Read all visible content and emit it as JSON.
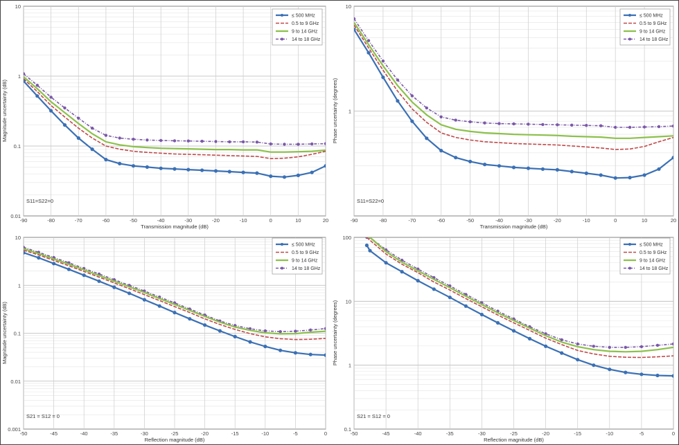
{
  "colors": {
    "series": [
      "#3a70b5",
      "#c04848",
      "#8cc04a",
      "#7a58a8"
    ],
    "grid": "#cccccc",
    "axis": "#666666"
  },
  "chart_data": [
    {
      "type": "line",
      "title": "",
      "xlabel": "Transmission magnitude (dB)",
      "ylabel": "Magnitude uncertainty (dB)",
      "yscale": "log",
      "xlim": [
        -90,
        20
      ],
      "ylim": [
        0.01,
        10
      ],
      "xticks": [
        "-90",
        "-80",
        "-70",
        "-60",
        "-50",
        "-40",
        "-30",
        "-20",
        "-10",
        "0",
        "10",
        "20"
      ],
      "yticks": [
        "0.01",
        "0.1",
        "1",
        "10"
      ],
      "note": "S11=S22=0",
      "legend": "top-right",
      "grid": true,
      "x": [
        -90,
        -85,
        -80,
        -75,
        -70,
        -65,
        -60,
        -55,
        -50,
        -45,
        -40,
        -35,
        -30,
        -25,
        -20,
        -15,
        -10,
        -5,
        0,
        5,
        10,
        15,
        20
      ],
      "series": [
        {
          "name": "≤ 500 MHz",
          "values": [
            0.85,
            0.52,
            0.32,
            0.2,
            0.13,
            0.09,
            0.064,
            0.056,
            0.052,
            0.05,
            0.048,
            0.047,
            0.046,
            0.045,
            0.044,
            0.043,
            0.042,
            0.041,
            0.037,
            0.036,
            0.038,
            0.042,
            0.052
          ]
        },
        {
          "name": "0.5 to 9 GHz",
          "values": [
            0.92,
            0.6,
            0.38,
            0.26,
            0.18,
            0.13,
            0.1,
            0.09,
            0.084,
            0.081,
            0.079,
            0.077,
            0.076,
            0.075,
            0.074,
            0.073,
            0.072,
            0.071,
            0.066,
            0.067,
            0.07,
            0.076,
            0.084
          ]
        },
        {
          "name": "9 to 14 GHz",
          "values": [
            0.98,
            0.66,
            0.43,
            0.3,
            0.21,
            0.15,
            0.115,
            0.104,
            0.098,
            0.095,
            0.093,
            0.092,
            0.091,
            0.09,
            0.089,
            0.089,
            0.088,
            0.088,
            0.082,
            0.082,
            0.083,
            0.084,
            0.087
          ]
        },
        {
          "name": "14 to 18 GHz",
          "values": [
            1.08,
            0.74,
            0.5,
            0.35,
            0.25,
            0.18,
            0.142,
            0.13,
            0.125,
            0.122,
            0.12,
            0.119,
            0.118,
            0.117,
            0.116,
            0.115,
            0.115,
            0.114,
            0.107,
            0.106,
            0.106,
            0.107,
            0.108
          ]
        }
      ]
    },
    {
      "type": "line",
      "title": "",
      "xlabel": "Transmission magnitude (dB)",
      "ylabel": "Phase uncertainty (degrees)",
      "yscale": "log",
      "xlim": [
        -90,
        20
      ],
      "ylim": [
        0.1,
        10
      ],
      "xticks": [
        "-90",
        "-80",
        "-70",
        "-60",
        "-50",
        "-40",
        "-30",
        "-20",
        "-10",
        "0",
        "10",
        "20"
      ],
      "yticks": [
        "",
        "1",
        "10"
      ],
      "note": "S11=S22=0",
      "legend": "top-right",
      "grid": true,
      "x": [
        -90,
        -85,
        -80,
        -75,
        -70,
        -65,
        -60,
        -55,
        -50,
        -45,
        -40,
        -35,
        -30,
        -25,
        -20,
        -15,
        -10,
        -5,
        0,
        5,
        10,
        15,
        20
      ],
      "series": [
        {
          "name": "≤ 500 MHz",
          "values": [
            6.0,
            3.6,
            2.1,
            1.25,
            0.8,
            0.55,
            0.42,
            0.36,
            0.33,
            0.31,
            0.3,
            0.29,
            0.285,
            0.28,
            0.275,
            0.265,
            0.255,
            0.245,
            0.23,
            0.232,
            0.245,
            0.28,
            0.36
          ]
        },
        {
          "name": "0.5 to 9 GHz",
          "values": [
            6.6,
            4.0,
            2.45,
            1.55,
            1.05,
            0.78,
            0.62,
            0.56,
            0.53,
            0.51,
            0.5,
            0.49,
            0.485,
            0.48,
            0.475,
            0.465,
            0.455,
            0.445,
            0.43,
            0.435,
            0.46,
            0.51,
            0.56
          ]
        },
        {
          "name": "9 to 14 GHz",
          "values": [
            7.0,
            4.3,
            2.7,
            1.75,
            1.22,
            0.92,
            0.74,
            0.67,
            0.64,
            0.62,
            0.61,
            0.6,
            0.595,
            0.59,
            0.585,
            0.575,
            0.57,
            0.565,
            0.55,
            0.55,
            0.56,
            0.57,
            0.58
          ]
        },
        {
          "name": "14 to 18 GHz",
          "values": [
            7.6,
            4.7,
            3.0,
            1.98,
            1.4,
            1.07,
            0.88,
            0.82,
            0.79,
            0.77,
            0.76,
            0.755,
            0.75,
            0.745,
            0.74,
            0.735,
            0.73,
            0.725,
            0.7,
            0.7,
            0.705,
            0.71,
            0.72
          ]
        }
      ]
    },
    {
      "type": "line",
      "title": "",
      "xlabel": "Reflection magnitude (dB)",
      "ylabel": "Magnitude uncertainty (dB)",
      "yscale": "log",
      "xlim": [
        -50,
        0
      ],
      "ylim": [
        0.001,
        10
      ],
      "xticks": [
        "-50",
        "-45",
        "-40",
        "-35",
        "-30",
        "-25",
        "-20",
        "-15",
        "-10",
        "-5",
        "0"
      ],
      "yticks": [
        "0.001",
        "0.01",
        "0.1",
        "1",
        "10"
      ],
      "note": "S21 = S12 = 0",
      "legend": "top-right",
      "grid": true,
      "x": [
        -50,
        -47.5,
        -45,
        -42.5,
        -40,
        -37.5,
        -35,
        -32.5,
        -30,
        -27.5,
        -25,
        -22.5,
        -20,
        -17.5,
        -15,
        -12.5,
        -10,
        -7.5,
        -5,
        -2.5,
        0
      ],
      "series": [
        {
          "name": "≤ 500 MHz",
          "values": [
            4.8,
            3.75,
            2.85,
            2.15,
            1.62,
            1.22,
            0.91,
            0.68,
            0.5,
            0.37,
            0.27,
            0.2,
            0.148,
            0.112,
            0.085,
            0.066,
            0.053,
            0.044,
            0.039,
            0.036,
            0.035
          ]
        },
        {
          "name": "0.5 to 9 GHz",
          "values": [
            5.4,
            4.3,
            3.3,
            2.55,
            1.95,
            1.48,
            1.12,
            0.85,
            0.64,
            0.48,
            0.36,
            0.27,
            0.2,
            0.152,
            0.12,
            0.098,
            0.084,
            0.077,
            0.074,
            0.075,
            0.078
          ]
        },
        {
          "name": "9 to 14 GHz",
          "values": [
            5.8,
            4.6,
            3.55,
            2.75,
            2.1,
            1.6,
            1.22,
            0.93,
            0.71,
            0.53,
            0.4,
            0.3,
            0.225,
            0.17,
            0.135,
            0.115,
            0.102,
            0.097,
            0.098,
            0.105,
            0.11
          ]
        },
        {
          "name": "14 to 18 GHz",
          "values": [
            6.2,
            4.9,
            3.8,
            2.95,
            2.25,
            1.72,
            1.31,
            1.0,
            0.76,
            0.57,
            0.43,
            0.32,
            0.24,
            0.18,
            0.145,
            0.124,
            0.112,
            0.108,
            0.11,
            0.117,
            0.125
          ]
        }
      ]
    },
    {
      "type": "line",
      "title": "",
      "xlabel": "Reflection magnitude (dB)",
      "ylabel": "Phase uncertainty (degrees)",
      "yscale": "log",
      "xlim": [
        -50,
        0
      ],
      "ylim": [
        0.1,
        100
      ],
      "xticks": [
        "-50",
        "-45",
        "-40",
        "-35",
        "-30",
        "-25",
        "-20",
        "-15",
        "-10",
        "-5",
        "0"
      ],
      "yticks": [
        "0.1",
        "1",
        "10",
        "100"
      ],
      "note": "S21 = S12 = 0",
      "legend": "top-right",
      "grid": true,
      "x": [
        -48,
        -47.5,
        -45,
        -42.5,
        -40,
        -37.5,
        -35,
        -32.5,
        -30,
        -27.5,
        -25,
        -22.5,
        -20,
        -17.5,
        -15,
        -12.5,
        -10,
        -7.5,
        -5,
        -2.5,
        0
      ],
      "series": [
        {
          "name": "≤ 500 MHz",
          "values": [
            75,
            62,
            40,
            29,
            21,
            15.5,
            11.5,
            8.4,
            6.2,
            4.6,
            3.45,
            2.6,
            1.98,
            1.55,
            1.22,
            1.0,
            0.86,
            0.77,
            0.72,
            0.69,
            0.68
          ]
        },
        {
          "name": "0.5 to 9 GHz",
          "values": [
            100,
            90,
            55,
            38,
            28,
            20,
            15,
            11,
            8.2,
            6.1,
            4.6,
            3.5,
            2.65,
            2.1,
            1.7,
            1.5,
            1.38,
            1.33,
            1.32,
            1.35,
            1.4
          ]
        },
        {
          "name": "9 to 14 GHz",
          "values": [
            100,
            100,
            60,
            41,
            30,
            22,
            16.3,
            12,
            8.9,
            6.6,
            5.0,
            3.8,
            2.9,
            2.3,
            1.95,
            1.75,
            1.65,
            1.62,
            1.65,
            1.75,
            1.9
          ]
        },
        {
          "name": "14 to 18 GHz",
          "values": [
            100,
            100,
            64,
            44,
            32,
            23.5,
            17.4,
            12.8,
            9.5,
            7.0,
            5.3,
            4.0,
            3.1,
            2.5,
            2.15,
            1.98,
            1.9,
            1.9,
            1.95,
            2.05,
            2.15
          ]
        }
      ]
    }
  ]
}
